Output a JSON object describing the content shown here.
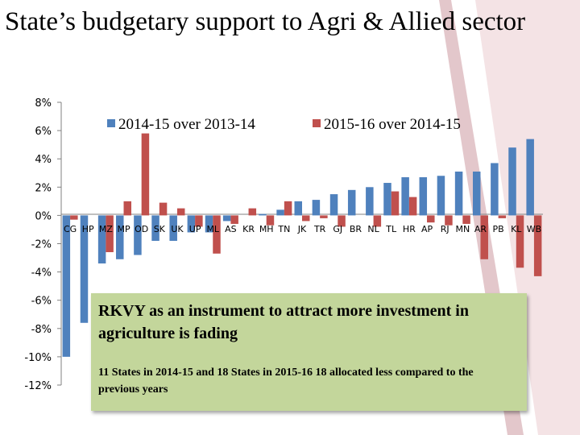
{
  "slide": {
    "title": "State’s budgetary support to Agri & Allied sector"
  },
  "callout": {
    "heading": "RKVY as an instrument to attract more investment in agriculture is fading",
    "note": "11 States in 2014-15  and 18 States in 2015-16 18  allocated less compared to the previous years"
  },
  "colors": {
    "series1": "#4f81bd",
    "series2": "#c0504d",
    "callout": "#c3d69b",
    "decor": "#eed0d3"
  },
  "chart_data": {
    "type": "bar",
    "title": "",
    "xlabel": "",
    "ylabel": "",
    "ylim": [
      -12,
      8
    ],
    "yticks": [
      "8%",
      "6%",
      "4%",
      "2%",
      "0%",
      "-2%",
      "-4%",
      "-6%",
      "-8%",
      "-10%",
      "-12%"
    ],
    "grid": false,
    "legend_position": "top",
    "categories": [
      "CG",
      "HP",
      "MZ",
      "MP",
      "OD",
      "SK",
      "UK",
      "UP",
      "ML",
      "AS",
      "KR",
      "MH",
      "TN",
      "JK",
      "TR",
      "GJ",
      "BR",
      "NL",
      "TL",
      "HR",
      "AP",
      "RJ",
      "MN",
      "AR",
      "PB",
      "KL",
      "WB"
    ],
    "series": [
      {
        "name": "2014-15 over 2013-14",
        "values": [
          -10.0,
          -7.6,
          -3.4,
          -3.1,
          -2.8,
          -1.8,
          -1.8,
          -1.2,
          -1.2,
          -0.4,
          0.0,
          0.1,
          0.4,
          1.0,
          1.1,
          1.5,
          1.8,
          2.0,
          2.3,
          2.7,
          2.7,
          2.8,
          3.1,
          3.1,
          3.7,
          4.8,
          5.4
        ]
      },
      {
        "name": "2015-16 over 2014-15",
        "values": [
          -0.3,
          0.0,
          -2.6,
          1.0,
          5.8,
          0.9,
          0.5,
          -0.8,
          -2.7,
          -0.6,
          0.5,
          -0.7,
          1.0,
          -0.4,
          -0.2,
          -0.8,
          0.0,
          -0.8,
          1.7,
          1.3,
          -0.5,
          -0.7,
          -0.6,
          -3.1,
          -0.2,
          -3.7,
          -4.3
        ]
      }
    ]
  }
}
